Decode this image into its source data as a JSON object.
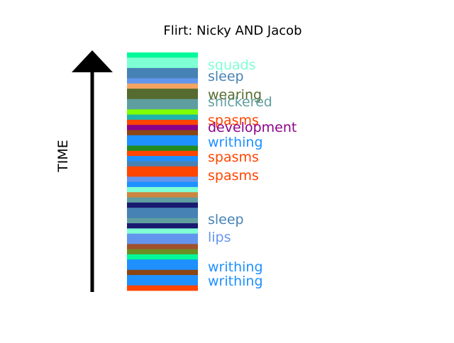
{
  "chart_data": {
    "type": "timeline-strip",
    "title": "Flirt: Nicky AND Jacob",
    "ylabel": "TIME",
    "segments": [
      {
        "color": "#00FA9A"
      },
      {
        "color": "#7FFFD4"
      },
      {
        "color": "#7FFFD4"
      },
      {
        "color": "#4682B4"
      },
      {
        "color": "#4682B4"
      },
      {
        "color": "#6495ED"
      },
      {
        "color": "#F4A460"
      },
      {
        "color": "#556B2F"
      },
      {
        "color": "#556B2F"
      },
      {
        "color": "#5F9EA0"
      },
      {
        "color": "#5F9EA0"
      },
      {
        "color": "#7FFF00"
      },
      {
        "color": "#20B2AA"
      },
      {
        "color": "#FF4500"
      },
      {
        "color": "#8B008B"
      },
      {
        "color": "#8B4513"
      },
      {
        "color": "#1E90FF"
      },
      {
        "color": "#1E90FF"
      },
      {
        "color": "#228B22"
      },
      {
        "color": "#FF4500"
      },
      {
        "color": "#1E90FF"
      },
      {
        "color": "#4682B4"
      },
      {
        "color": "#FF4500"
      },
      {
        "color": "#FF4500"
      },
      {
        "color": "#6495ED"
      },
      {
        "color": "#1E90FF"
      },
      {
        "color": "#7FFFD4"
      },
      {
        "color": "#CD853F"
      },
      {
        "color": "#5F9EA0"
      },
      {
        "color": "#191970"
      },
      {
        "color": "#4682B4"
      },
      {
        "color": "#4682B4"
      },
      {
        "color": "#5F9EA0"
      },
      {
        "color": "#191970"
      },
      {
        "color": "#7FFFD4"
      },
      {
        "color": "#6495ED"
      },
      {
        "color": "#6495ED"
      },
      {
        "color": "#A0522D"
      },
      {
        "color": "#6B8E23"
      },
      {
        "color": "#00FA9A"
      },
      {
        "color": "#1E90FF"
      },
      {
        "color": "#1E90FF"
      },
      {
        "color": "#8B4513"
      },
      {
        "color": "#1E90FF"
      },
      {
        "color": "#1E90FF"
      },
      {
        "color": "#FF4500"
      }
    ],
    "labels": [
      {
        "text": "squads",
        "color": "#7FFFD4"
      },
      {
        "text": "sleep",
        "color": "#4682B4"
      },
      {
        "text": "wearing",
        "color": "#556B2F"
      },
      {
        "text": "snickered",
        "color": "#5F9EA0"
      },
      {
        "text": "spasms",
        "color": "#FF4500"
      },
      {
        "text": "development",
        "color": "#8B008B"
      },
      {
        "text": "writhing",
        "color": "#1E90FF"
      },
      {
        "text": "spasms",
        "color": "#FF4500"
      },
      {
        "text": "spasms",
        "color": "#FF4500"
      },
      {
        "text": "sleep",
        "color": "#4682B4"
      },
      {
        "text": "lips",
        "color": "#6495ED"
      },
      {
        "text": "writhing",
        "color": "#1E90FF"
      },
      {
        "text": "writhing",
        "color": "#1E90FF"
      }
    ]
  }
}
